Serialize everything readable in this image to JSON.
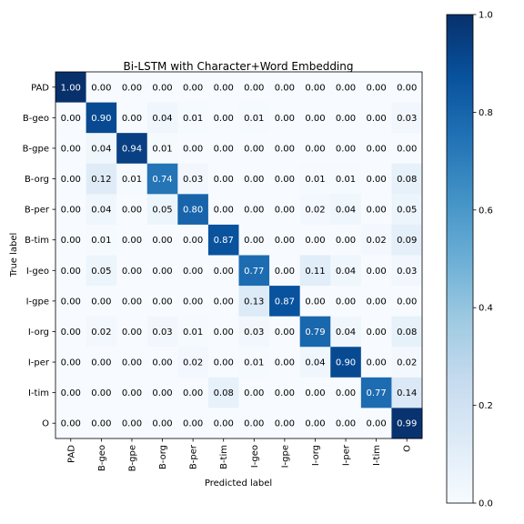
{
  "chart_data": {
    "type": "heatmap",
    "title": "Bi-LSTM with Character+Word Embedding",
    "xlabel": "Predicted label",
    "ylabel": "True label",
    "labels": [
      "PAD",
      "B-geo",
      "B-gpe",
      "B-org",
      "B-per",
      "B-tim",
      "I-geo",
      "I-gpe",
      "I-org",
      "I-per",
      "I-tim",
      "O"
    ],
    "matrix": [
      [
        1.0,
        0.0,
        0.0,
        0.0,
        0.0,
        0.0,
        0.0,
        0.0,
        0.0,
        0.0,
        0.0,
        0.0
      ],
      [
        0.0,
        0.9,
        0.0,
        0.04,
        0.01,
        0.0,
        0.01,
        0.0,
        0.0,
        0.0,
        0.0,
        0.03
      ],
      [
        0.0,
        0.04,
        0.94,
        0.01,
        0.0,
        0.0,
        0.0,
        0.0,
        0.0,
        0.0,
        0.0,
        0.0
      ],
      [
        0.0,
        0.12,
        0.01,
        0.74,
        0.03,
        0.0,
        0.0,
        0.0,
        0.01,
        0.01,
        0.0,
        0.08
      ],
      [
        0.0,
        0.04,
        0.0,
        0.05,
        0.8,
        0.0,
        0.0,
        0.0,
        0.02,
        0.04,
        0.0,
        0.05
      ],
      [
        0.0,
        0.01,
        0.0,
        0.0,
        0.0,
        0.87,
        0.0,
        0.0,
        0.0,
        0.0,
        0.02,
        0.09
      ],
      [
        0.0,
        0.05,
        0.0,
        0.0,
        0.0,
        0.0,
        0.77,
        0.0,
        0.11,
        0.04,
        0.0,
        0.03
      ],
      [
        0.0,
        0.0,
        0.0,
        0.0,
        0.0,
        0.0,
        0.13,
        0.87,
        0.0,
        0.0,
        0.0,
        0.0
      ],
      [
        0.0,
        0.02,
        0.0,
        0.03,
        0.01,
        0.0,
        0.03,
        0.0,
        0.79,
        0.04,
        0.0,
        0.08
      ],
      [
        0.0,
        0.0,
        0.0,
        0.0,
        0.02,
        0.0,
        0.01,
        0.0,
        0.04,
        0.9,
        0.0,
        0.02
      ],
      [
        0.0,
        0.0,
        0.0,
        0.0,
        0.0,
        0.08,
        0.0,
        0.0,
        0.0,
        0.0,
        0.77,
        0.14
      ],
      [
        0.0,
        0.0,
        0.0,
        0.0,
        0.0,
        0.0,
        0.0,
        0.0,
        0.0,
        0.0,
        0.0,
        0.99
      ]
    ],
    "value_range": [
      0.0,
      1.0
    ],
    "colormap": "Blues",
    "colormap_low": "#f7fbff",
    "colormap_high": "#08306b",
    "colorbar_ticks": [
      "0.0",
      "0.2",
      "0.4",
      "0.6",
      "0.8",
      "1.0"
    ],
    "colorbar_tick_values": [
      0.0,
      0.2,
      0.4,
      0.6,
      0.8,
      1.0
    ],
    "grid": false
  }
}
